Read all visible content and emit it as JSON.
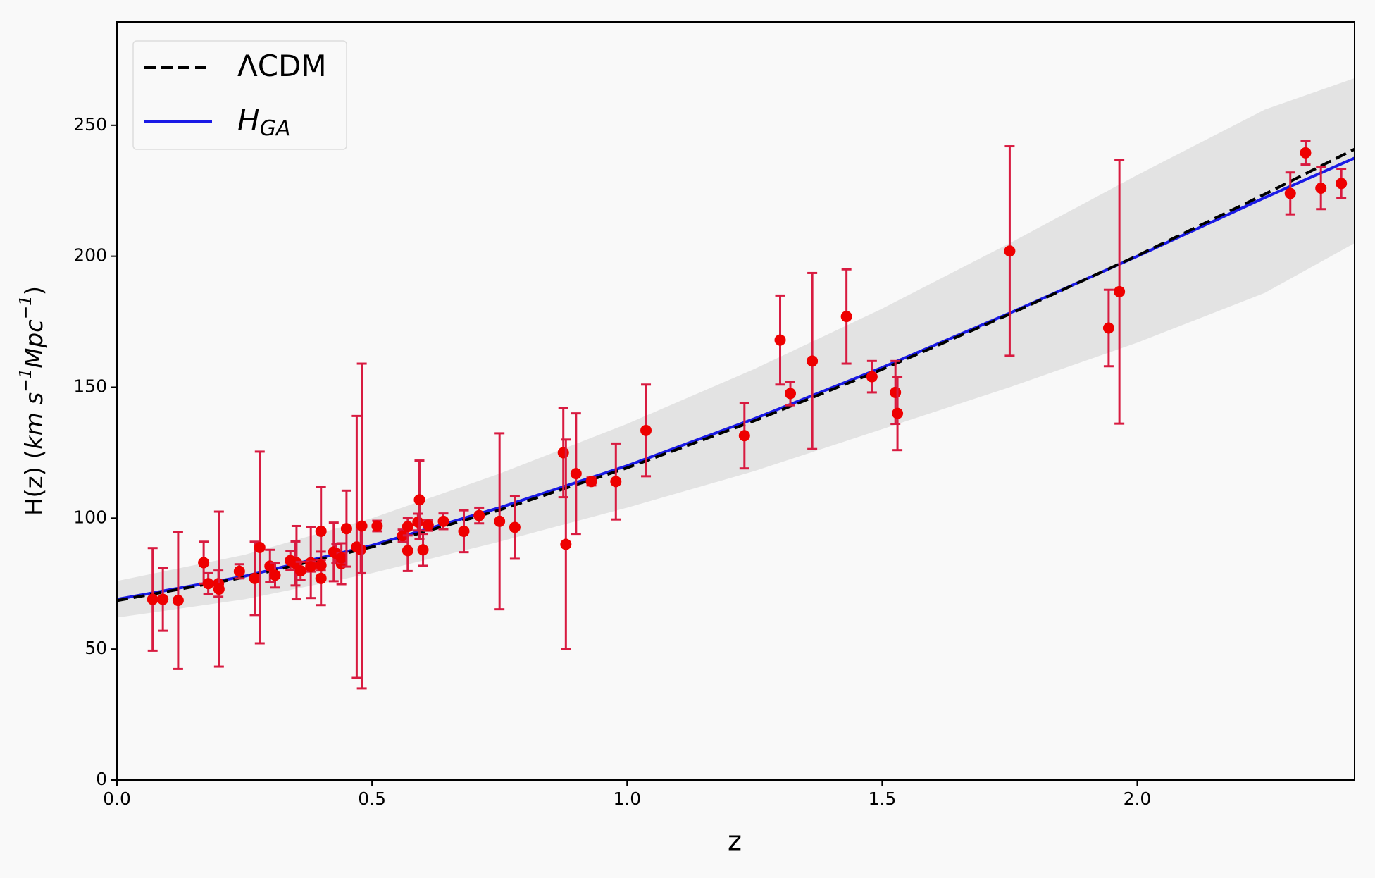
{
  "chart_data": {
    "type": "scatter",
    "xlabel": "z",
    "ylabel_parts": [
      {
        "text": "H(z) (",
        "style": "normal"
      },
      {
        "text": "km s",
        "style": "italic"
      },
      {
        "text": "−1",
        "style": "superscript"
      },
      {
        "text": "Mpc",
        "style": "italic"
      },
      {
        "text": "−1",
        "style": "superscript"
      },
      {
        "text": ")",
        "style": "normal"
      }
    ],
    "xlim": [
      0,
      2.426
    ],
    "ylim": [
      0,
      289.5
    ],
    "xticks": [
      {
        "value": 0,
        "label": "0.0"
      },
      0.5,
      {
        "value": 1,
        "label": "1.0"
      },
      1.5,
      {
        "value": 2,
        "label": "2.0"
      }
    ],
    "yticks": [
      0,
      50,
      100,
      150,
      200,
      250
    ],
    "legend": "upper left",
    "curve_x": [
      0,
      0.25,
      0.5,
      0.75,
      1.0,
      1.25,
      1.5,
      1.75,
      2.0,
      2.25,
      2.426
    ],
    "band": {
      "color": "#e3e3e3",
      "lower": [
        62,
        69,
        79,
        91,
        104,
        118,
        134,
        150,
        167,
        186,
        205
      ],
      "upper": [
        76,
        86,
        100,
        117,
        136,
        157,
        180,
        205,
        231,
        256,
        268
      ]
    },
    "series": [
      {
        "name": "ΛCDM",
        "type": "line",
        "color": "#000000",
        "dashed": true,
        "values": [
          68.5,
          77.4,
          89.0,
          103.1,
          119.2,
          137.2,
          156.8,
          177.9,
          200.2,
          223.7,
          240.9
        ]
      },
      {
        "name": "H",
        "name_subscript": "GA",
        "type": "line",
        "color": "#1a1ae6",
        "dashed": false,
        "values": [
          69,
          77.8,
          89.6,
          104.0,
          120.0,
          138.0,
          157.5,
          178.3,
          200.0,
          222.4,
          237.5
        ]
      }
    ],
    "points": {
      "color": "#ee0000",
      "error_color": "#d81b40",
      "x": [
        0.07,
        0.09,
        0.12,
        0.17,
        0.179,
        0.199,
        0.2,
        0.24,
        0.27,
        0.28,
        0.3,
        0.31,
        0.34,
        0.35,
        0.352,
        0.36,
        0.38,
        0.38,
        0.4,
        0.4,
        0.4,
        0.425,
        0.43,
        0.44,
        0.44,
        0.45,
        0.47,
        0.478,
        0.48,
        0.51,
        0.56,
        0.57,
        0.57,
        0.59,
        0.593,
        0.6,
        0.61,
        0.64,
        0.68,
        0.71,
        0.75,
        0.78,
        0.875,
        0.88,
        0.9,
        0.93,
        0.978,
        1.037,
        1.23,
        1.3,
        1.32,
        1.363,
        1.43,
        1.48,
        1.526,
        1.53,
        1.75,
        1.944,
        1.965,
        2.3,
        2.33,
        2.36,
        2.4
      ],
      "values": [
        69,
        69,
        68.6,
        83,
        75,
        75,
        72.9,
        79.7,
        77,
        88.8,
        81.7,
        78.2,
        83.8,
        82.7,
        83,
        79.9,
        83,
        81.5,
        95,
        77,
        82,
        87.1,
        86.5,
        82.6,
        84.8,
        96,
        89,
        88,
        97,
        97,
        93.3,
        87.6,
        96.8,
        98.5,
        107,
        87.9,
        97.3,
        98.8,
        95,
        101,
        98.8,
        96.5,
        125,
        90,
        117,
        114,
        114,
        133.5,
        131.5,
        168,
        147.6,
        160,
        177,
        154,
        148,
        140,
        202,
        172.6,
        186.5,
        224,
        239.5,
        226,
        227.8
      ],
      "errors": [
        19.6,
        12,
        26.2,
        8,
        4,
        5,
        29.6,
        2.7,
        14,
        36.6,
        6.2,
        4.7,
        3.7,
        8.4,
        14,
        3.4,
        13.5,
        1.9,
        17,
        10.2,
        2,
        11.2,
        3.7,
        7.8,
        1.8,
        14.5,
        50,
        9,
        62,
        2,
        2.3,
        7.8,
        3.4,
        3.2,
        15,
        6.1,
        2.1,
        3,
        8,
        3,
        33.6,
        12,
        17,
        40,
        23,
        1.5,
        14.5,
        17.5,
        12.5,
        17,
        4.5,
        33.6,
        18,
        6,
        12,
        14,
        40,
        14.6,
        50.4,
        8,
        4.5,
        8,
        5.6
      ]
    }
  }
}
